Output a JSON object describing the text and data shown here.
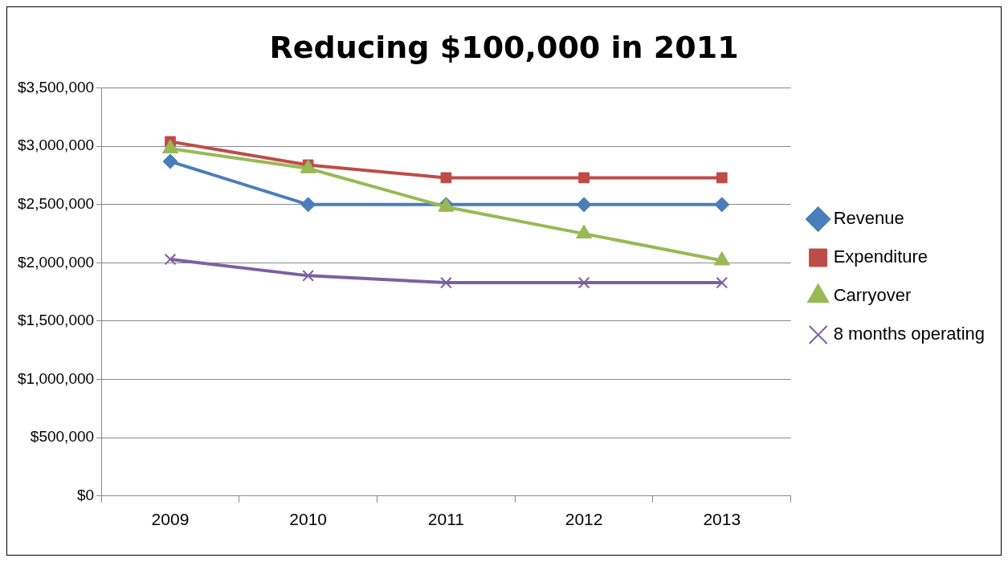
{
  "chart_data": {
    "type": "line",
    "title": "Reducing $100,000 in 2011",
    "categories": [
      "2009",
      "2010",
      "2011",
      "2012",
      "2013"
    ],
    "series": [
      {
        "name": "Revenue",
        "color": "#4a7ebb",
        "marker": "diamond",
        "values": [
          2870000,
          2500000,
          2500000,
          2500000,
          2500000
        ]
      },
      {
        "name": "Expenditure",
        "color": "#be4b48",
        "marker": "square",
        "values": [
          3040000,
          2840000,
          2730000,
          2730000,
          2730000
        ]
      },
      {
        "name": "Carryover",
        "color": "#98b954",
        "marker": "triangle",
        "values": [
          2980000,
          2810000,
          2480000,
          2250000,
          2020000
        ]
      },
      {
        "name": "8 months operating",
        "color": "#7d60a0",
        "marker": "cross",
        "values": [
          2030000,
          1890000,
          1830000,
          1830000,
          1830000
        ]
      }
    ],
    "ylim": [
      0,
      3500000
    ],
    "yticks": [
      {
        "value": 0,
        "label": "$0"
      },
      {
        "value": 500000,
        "label": "$500,000"
      },
      {
        "value": 1000000,
        "label": "$1,000,000"
      },
      {
        "value": 1500000,
        "label": "$1,500,000"
      },
      {
        "value": 2000000,
        "label": "$2,000,000"
      },
      {
        "value": 2500000,
        "label": "$2,500,000"
      },
      {
        "value": 3000000,
        "label": "$3,000,000"
      },
      {
        "value": 3500000,
        "label": "$3,500,000"
      }
    ],
    "grid": "y",
    "legend": "right",
    "line_style": "solid"
  }
}
